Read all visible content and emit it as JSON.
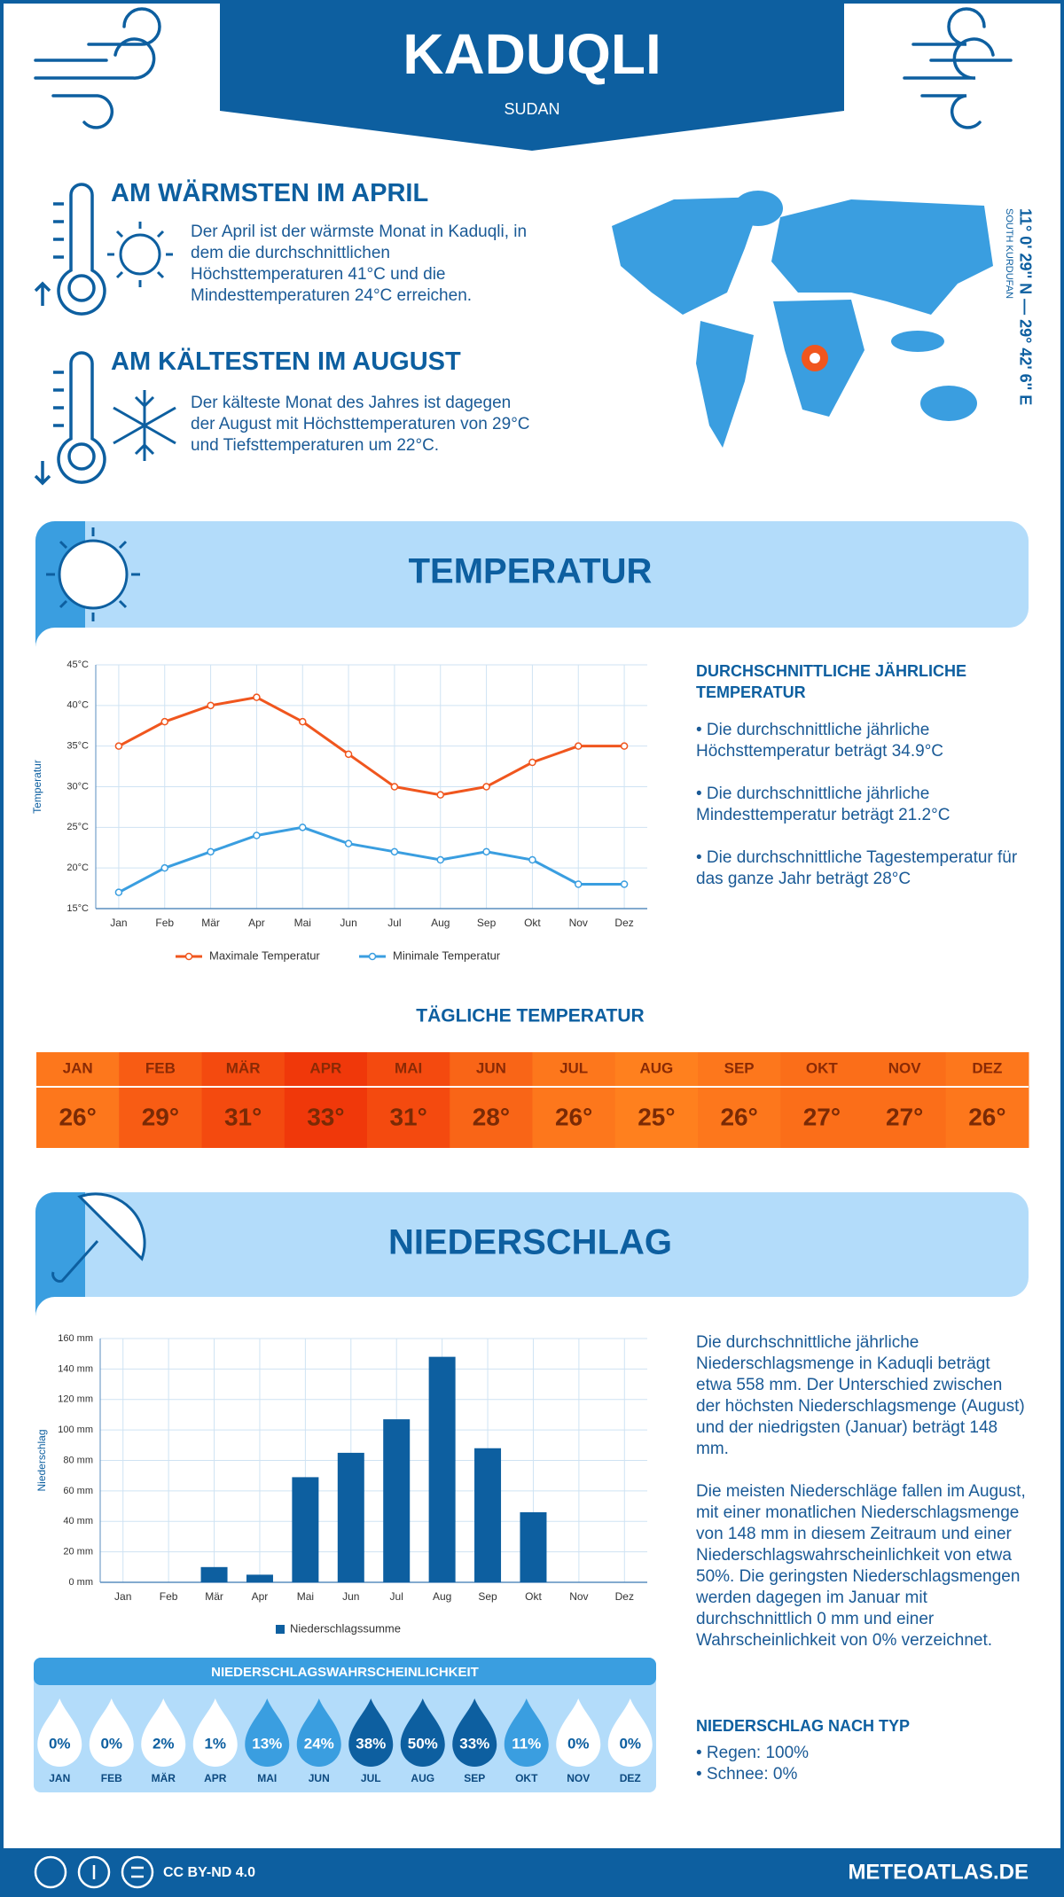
{
  "header": {
    "title": "KADUQLI",
    "subtitle": "SUDAN"
  },
  "highlights": [
    {
      "title": "AM WÄRMSTEN IM APRIL",
      "text": "Der April ist der wärmste Monat in Kaduqli, in dem die durchschnittlichen Höchsttemperaturen 41°C und die Mindesttemperaturen 24°C erreichen."
    },
    {
      "title": "AM KÄLTESTEN IM AUGUST",
      "text": "Der kälteste Monat des Jahres ist dagegen der August mit Höchsttemperaturen von 29°C und Tiefsttemperaturen um 22°C."
    }
  ],
  "location": {
    "coordinates": "11° 0' 29'' N — 29° 42' 6'' E",
    "region": "SOUTH KURDUFAN"
  },
  "temperature_section": {
    "title": "TEMPERATUR",
    "summary_title": "DURCHSCHNITTLICHE JÄHRLICHE TEMPERATUR",
    "summary": [
      "• Die durchschnittliche jährliche Höchsttemperatur beträgt 34.9°C",
      "• Die durchschnittliche jährliche Mindesttemperatur beträgt 21.2°C",
      "• Die durchschnittliche Tagestemperatur für das ganze Jahr beträgt 28°C"
    ]
  },
  "chart_data": [
    {
      "type": "line",
      "ylabel": "Temperatur",
      "categories": [
        "Jan",
        "Feb",
        "Mär",
        "Apr",
        "Mai",
        "Jun",
        "Jul",
        "Aug",
        "Sep",
        "Okt",
        "Nov",
        "Dez"
      ],
      "series": [
        {
          "name": "Maximale Temperatur",
          "color": "#f0561e",
          "values": [
            35,
            38,
            40,
            41,
            38,
            34,
            30,
            29,
            30,
            33,
            35,
            35
          ]
        },
        {
          "name": "Minimale Temperatur",
          "color": "#3a9ee0",
          "values": [
            17,
            20,
            22,
            24,
            25,
            23,
            22,
            21,
            22,
            21,
            18,
            18
          ]
        }
      ],
      "ylim": [
        15,
        45
      ],
      "yticks": [
        {
          "value": 15,
          "label": "15°C"
        },
        {
          "value": 20,
          "label": "20°C"
        },
        {
          "value": 25,
          "label": "25°C"
        },
        {
          "value": 30,
          "label": "30°C"
        },
        {
          "value": 35,
          "label": "35°C"
        },
        {
          "value": 40,
          "label": "40°C"
        },
        {
          "value": 45,
          "label": "45°C"
        }
      ],
      "grid": true
    },
    {
      "type": "bar",
      "ylabel": "Niederschlag",
      "categories": [
        "Jan",
        "Feb",
        "Mär",
        "Apr",
        "Mai",
        "Jun",
        "Jul",
        "Aug",
        "Sep",
        "Okt",
        "Nov",
        "Dez"
      ],
      "series": [
        {
          "name": "Niederschlagssumme",
          "color": "#0d5fa0",
          "values": [
            0,
            0,
            10,
            5,
            69,
            85,
            107,
            148,
            88,
            46,
            0,
            0
          ]
        }
      ],
      "ylim": [
        0,
        160
      ],
      "yticks": [
        {
          "value": 0,
          "label": "0 mm"
        },
        {
          "value": 20,
          "label": "20 mm"
        },
        {
          "value": 40,
          "label": "40 mm"
        },
        {
          "value": 60,
          "label": "60 mm"
        },
        {
          "value": 80,
          "label": "80 mm"
        },
        {
          "value": 100,
          "label": "100 mm"
        },
        {
          "value": 120,
          "label": "120 mm"
        },
        {
          "value": 140,
          "label": "140 mm"
        },
        {
          "value": 160,
          "label": "160 mm"
        }
      ],
      "grid": true
    }
  ],
  "daily_temperature": {
    "title": "TÄGLICHE TEMPERATUR",
    "months": [
      "JAN",
      "FEB",
      "MÄR",
      "APR",
      "MAI",
      "JUN",
      "JUL",
      "AUG",
      "SEP",
      "OKT",
      "NOV",
      "DEZ"
    ],
    "values": [
      26,
      29,
      31,
      33,
      31,
      28,
      26,
      25,
      26,
      27,
      27,
      26
    ],
    "value_labels": [
      "26°",
      "29°",
      "31°",
      "33°",
      "31°",
      "28°",
      "26°",
      "25°",
      "26°",
      "27°",
      "27°",
      "26°"
    ]
  },
  "precipitation_section": {
    "title": "NIEDERSCHLAG",
    "paragraphs": [
      "Die durchschnittliche jährliche Niederschlagsmenge in Kaduqli beträgt etwa 558 mm. Der Unterschied zwischen der höchsten Niederschlagsmenge (August) und der niedrigsten (Januar) beträgt 148 mm.",
      "Die meisten Niederschläge fallen im August, mit einer monatlichen Niederschlagsmenge von 148 mm in diesem Zeitraum und einer Niederschlagswahrscheinlichkeit von etwa 50%. Die geringsten Niederschlagsmengen werden dagegen im Januar mit durchschnittlich 0 mm und einer Wahrscheinlichkeit von 0% verzeichnet."
    ],
    "type_title": "NIEDERSCHLAG NACH TYP",
    "types": [
      "• Regen: 100%",
      "• Schnee: 0%"
    ]
  },
  "precipitation_probability": {
    "title": "NIEDERSCHLAGSWAHRSCHEINLICHKEIT",
    "months": [
      "JAN",
      "FEB",
      "MÄR",
      "APR",
      "MAI",
      "JUN",
      "JUL",
      "AUG",
      "SEP",
      "OKT",
      "NOV",
      "DEZ"
    ],
    "values": [
      0,
      0,
      2,
      1,
      13,
      24,
      38,
      50,
      33,
      11,
      0,
      0
    ],
    "value_labels": [
      "0%",
      "0%",
      "2%",
      "1%",
      "13%",
      "24%",
      "38%",
      "50%",
      "33%",
      "11%",
      "0%",
      "0%"
    ]
  },
  "footer": {
    "license": "CC BY-ND 4.0",
    "site": "METEOATLAS.DE"
  }
}
